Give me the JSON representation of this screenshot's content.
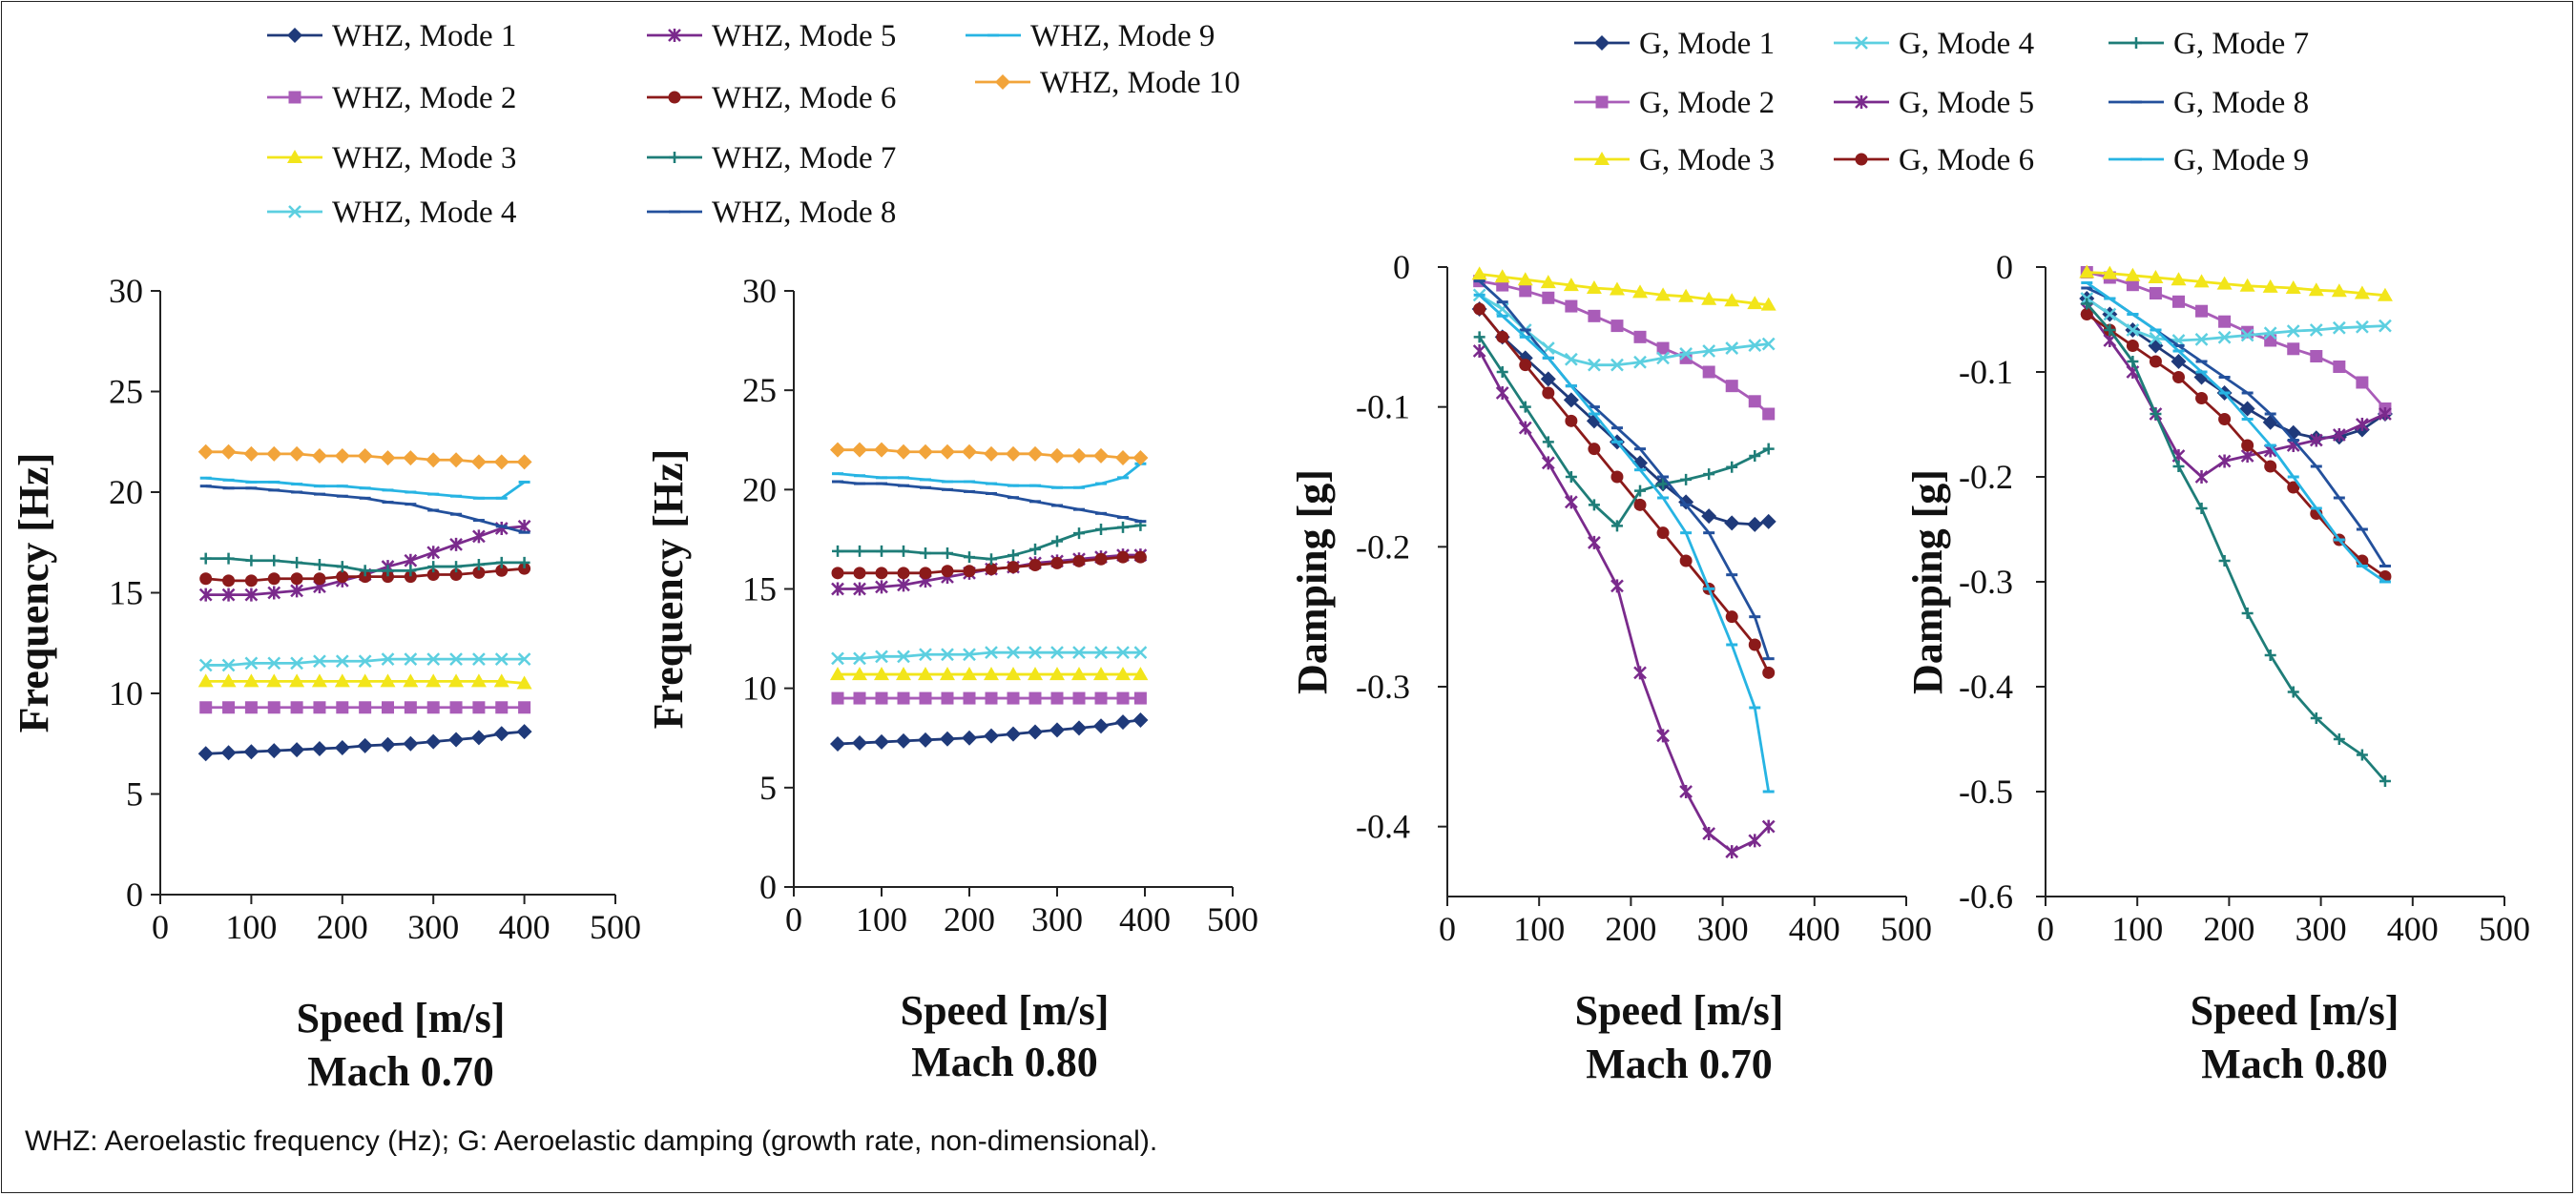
{
  "footnote": "WHZ: Aeroelastic frequency (Hz); G: Aeroelastic damping (growth rate, non-dimensional).",
  "colors": {
    "mode1": "#1f3a7a",
    "mode2": "#a95cb8",
    "mode3": "#f2e51a",
    "mode4": "#5ccfe0",
    "mode5": "#7a2a8c",
    "mode6": "#8b1a1a",
    "mode7": "#1e7d78",
    "mode8": "#23509c",
    "mode9": "#27b4e3",
    "mode10": "#f2a43a"
  },
  "legends": {
    "whz": [
      "WHZ, Mode 1",
      "WHZ, Mode 2",
      "WHZ, Mode 3",
      "WHZ, Mode 4",
      "WHZ, Mode 5",
      "WHZ, Mode 6",
      "WHZ, Mode 7",
      "WHZ, Mode 8",
      "WHZ, Mode 9",
      "WHZ, Mode 10"
    ],
    "g": [
      "G, Mode 1",
      "G, Mode 2",
      "G, Mode 3",
      "G, Mode 4",
      "G, Mode 5",
      "G, Mode 6",
      "G, Mode 7",
      "G, Mode 8",
      "G, Mode 9"
    ]
  },
  "chart_data": [
    {
      "type": "line",
      "xlabel": "Speed [m/s]",
      "subtitle": "Mach 0.70",
      "ylabel": "Frequency [Hz]",
      "xlim": [
        0,
        500
      ],
      "ylim": [
        0,
        30
      ],
      "xticks": [
        0,
        100,
        200,
        300,
        400,
        500
      ],
      "yticks": [
        0,
        5,
        10,
        15,
        20,
        25,
        30
      ],
      "x": [
        50,
        75,
        100,
        125,
        150,
        175,
        200,
        225,
        250,
        275,
        300,
        325,
        350,
        375,
        400
      ],
      "series": [
        {
          "name": "WHZ, Mode 1",
          "marker": "diamond",
          "values": [
            7.0,
            7.05,
            7.1,
            7.15,
            7.2,
            7.25,
            7.3,
            7.4,
            7.45,
            7.5,
            7.6,
            7.7,
            7.8,
            8.0,
            8.1
          ]
        },
        {
          "name": "WHZ, Mode 2",
          "marker": "square",
          "values": [
            9.3,
            9.3,
            9.3,
            9.3,
            9.3,
            9.3,
            9.3,
            9.3,
            9.3,
            9.3,
            9.3,
            9.3,
            9.3,
            9.3,
            9.3
          ]
        },
        {
          "name": "WHZ, Mode 3",
          "marker": "triangle",
          "values": [
            10.6,
            10.6,
            10.6,
            10.6,
            10.6,
            10.6,
            10.6,
            10.6,
            10.6,
            10.6,
            10.6,
            10.6,
            10.6,
            10.6,
            10.5
          ]
        },
        {
          "name": "WHZ, Mode 4",
          "marker": "x",
          "values": [
            11.4,
            11.4,
            11.5,
            11.5,
            11.5,
            11.6,
            11.6,
            11.6,
            11.7,
            11.7,
            11.7,
            11.7,
            11.7,
            11.7,
            11.7
          ]
        },
        {
          "name": "WHZ, Mode 5",
          "marker": "star",
          "values": [
            14.9,
            14.9,
            14.9,
            15.0,
            15.1,
            15.3,
            15.6,
            15.9,
            16.3,
            16.6,
            17.0,
            17.4,
            17.8,
            18.2,
            18.3
          ]
        },
        {
          "name": "WHZ, Mode 6",
          "marker": "circle",
          "values": [
            15.7,
            15.6,
            15.6,
            15.7,
            15.7,
            15.7,
            15.8,
            15.8,
            15.8,
            15.8,
            15.9,
            15.9,
            16.0,
            16.1,
            16.2
          ]
        },
        {
          "name": "WHZ, Mode 7",
          "marker": "plus",
          "values": [
            16.7,
            16.7,
            16.6,
            16.6,
            16.5,
            16.4,
            16.3,
            16.1,
            16.1,
            16.1,
            16.3,
            16.3,
            16.4,
            16.5,
            16.5
          ]
        },
        {
          "name": "WHZ, Mode 8",
          "marker": "dash",
          "values": [
            20.3,
            20.2,
            20.2,
            20.1,
            20.0,
            19.9,
            19.8,
            19.7,
            19.5,
            19.4,
            19.1,
            18.9,
            18.6,
            18.3,
            18.0
          ]
        },
        {
          "name": "WHZ, Mode 9",
          "marker": "dash",
          "values": [
            20.7,
            20.6,
            20.5,
            20.5,
            20.4,
            20.3,
            20.3,
            20.2,
            20.1,
            20.0,
            19.9,
            19.8,
            19.7,
            19.7,
            20.5
          ]
        },
        {
          "name": "WHZ, Mode 10",
          "marker": "diamond",
          "values": [
            22.0,
            22.0,
            21.9,
            21.9,
            21.9,
            21.8,
            21.8,
            21.8,
            21.7,
            21.7,
            21.6,
            21.6,
            21.5,
            21.5,
            21.5
          ]
        }
      ]
    },
    {
      "type": "line",
      "xlabel": "Speed [m/s]",
      "subtitle": "Mach 0.80",
      "ylabel": "Frequency [Hz]",
      "xlim": [
        0,
        500
      ],
      "ylim": [
        0,
        30
      ],
      "xticks": [
        0,
        100,
        200,
        300,
        400,
        500
      ],
      "yticks": [
        0,
        5,
        10,
        15,
        20,
        25,
        30
      ],
      "x": [
        50,
        75,
        100,
        125,
        150,
        175,
        200,
        225,
        250,
        275,
        300,
        325,
        350,
        375,
        395
      ],
      "series": [
        {
          "name": "WHZ, Mode 1",
          "marker": "diamond",
          "values": [
            7.2,
            7.25,
            7.3,
            7.35,
            7.4,
            7.45,
            7.5,
            7.6,
            7.7,
            7.8,
            7.9,
            8.0,
            8.1,
            8.3,
            8.4
          ]
        },
        {
          "name": "WHZ, Mode 2",
          "marker": "square",
          "values": [
            9.5,
            9.5,
            9.5,
            9.5,
            9.5,
            9.5,
            9.5,
            9.5,
            9.5,
            9.5,
            9.5,
            9.5,
            9.5,
            9.5,
            9.5
          ]
        },
        {
          "name": "WHZ, Mode 3",
          "marker": "triangle",
          "values": [
            10.7,
            10.7,
            10.7,
            10.7,
            10.7,
            10.7,
            10.7,
            10.7,
            10.7,
            10.7,
            10.7,
            10.7,
            10.7,
            10.7,
            10.7
          ]
        },
        {
          "name": "WHZ, Mode 4",
          "marker": "x",
          "values": [
            11.5,
            11.5,
            11.6,
            11.6,
            11.7,
            11.7,
            11.7,
            11.8,
            11.8,
            11.8,
            11.8,
            11.8,
            11.8,
            11.8,
            11.8
          ]
        },
        {
          "name": "WHZ, Mode 5",
          "marker": "star",
          "values": [
            15.0,
            15.0,
            15.1,
            15.2,
            15.4,
            15.6,
            15.8,
            16.0,
            16.1,
            16.3,
            16.4,
            16.5,
            16.6,
            16.7,
            16.7
          ]
        },
        {
          "name": "WHZ, Mode 6",
          "marker": "circle",
          "values": [
            15.8,
            15.8,
            15.8,
            15.8,
            15.8,
            15.9,
            15.9,
            16.0,
            16.1,
            16.2,
            16.3,
            16.4,
            16.5,
            16.6,
            16.6
          ]
        },
        {
          "name": "WHZ, Mode 7",
          "marker": "plus",
          "values": [
            16.9,
            16.9,
            16.9,
            16.9,
            16.8,
            16.8,
            16.6,
            16.5,
            16.7,
            17.0,
            17.4,
            17.8,
            18.0,
            18.1,
            18.2
          ]
        },
        {
          "name": "WHZ, Mode 8",
          "marker": "dash",
          "values": [
            20.4,
            20.3,
            20.3,
            20.2,
            20.1,
            20.0,
            19.9,
            19.8,
            19.6,
            19.4,
            19.2,
            19.0,
            18.8,
            18.6,
            18.4
          ]
        },
        {
          "name": "WHZ, Mode 9",
          "marker": "dash",
          "values": [
            20.8,
            20.7,
            20.6,
            20.6,
            20.5,
            20.4,
            20.4,
            20.3,
            20.2,
            20.2,
            20.1,
            20.1,
            20.3,
            20.6,
            21.3
          ]
        },
        {
          "name": "WHZ, Mode 10",
          "marker": "diamond",
          "values": [
            22.0,
            22.0,
            22.0,
            21.9,
            21.9,
            21.9,
            21.9,
            21.8,
            21.8,
            21.8,
            21.7,
            21.7,
            21.7,
            21.6,
            21.6
          ]
        }
      ]
    },
    {
      "type": "line",
      "xlabel": "Speed [m/s]",
      "subtitle": "Mach 0.70",
      "ylabel": "Damping [g]",
      "xlim": [
        0,
        500
      ],
      "ylim": [
        -0.45,
        0
      ],
      "xticks": [
        0,
        100,
        200,
        300,
        400,
        500
      ],
      "yticks": [
        -0.4,
        -0.3,
        -0.2,
        -0.1,
        0
      ],
      "x": [
        35,
        60,
        85,
        110,
        135,
        160,
        185,
        210,
        235,
        260,
        285,
        310,
        335,
        350
      ],
      "series": [
        {
          "name": "G, Mode 1",
          "marker": "diamond",
          "values": [
            -0.03,
            -0.05,
            -0.065,
            -0.08,
            -0.095,
            -0.11,
            -0.125,
            -0.14,
            -0.155,
            -0.168,
            -0.178,
            -0.183,
            -0.184,
            -0.182
          ]
        },
        {
          "name": "G, Mode 2",
          "marker": "square",
          "values": [
            -0.01,
            -0.013,
            -0.017,
            -0.022,
            -0.028,
            -0.035,
            -0.042,
            -0.05,
            -0.058,
            -0.065,
            -0.075,
            -0.085,
            -0.096,
            -0.105
          ]
        },
        {
          "name": "G, Mode 3",
          "marker": "triangle",
          "values": [
            -0.005,
            -0.007,
            -0.009,
            -0.011,
            -0.013,
            -0.015,
            -0.016,
            -0.018,
            -0.02,
            -0.021,
            -0.023,
            -0.024,
            -0.026,
            -0.027
          ]
        },
        {
          "name": "G, Mode 4",
          "marker": "x",
          "values": [
            -0.02,
            -0.03,
            -0.045,
            -0.058,
            -0.066,
            -0.07,
            -0.07,
            -0.068,
            -0.065,
            -0.062,
            -0.06,
            -0.058,
            -0.056,
            -0.055
          ]
        },
        {
          "name": "G, Mode 5",
          "marker": "star",
          "values": [
            -0.06,
            -0.09,
            -0.115,
            -0.14,
            -0.168,
            -0.197,
            -0.228,
            -0.29,
            -0.335,
            -0.375,
            -0.405,
            -0.418,
            -0.41,
            -0.4
          ]
        },
        {
          "name": "G, Mode 6",
          "marker": "circle",
          "values": [
            -0.03,
            -0.05,
            -0.07,
            -0.09,
            -0.11,
            -0.13,
            -0.15,
            -0.17,
            -0.19,
            -0.21,
            -0.23,
            -0.25,
            -0.27,
            -0.29
          ]
        },
        {
          "name": "G, Mode 7",
          "marker": "plus",
          "values": [
            -0.05,
            -0.075,
            -0.1,
            -0.125,
            -0.15,
            -0.17,
            -0.185,
            -0.16,
            -0.155,
            -0.152,
            -0.148,
            -0.143,
            -0.135,
            -0.13
          ]
        },
        {
          "name": "G, Mode 8",
          "marker": "dash",
          "values": [
            -0.01,
            -0.025,
            -0.045,
            -0.065,
            -0.085,
            -0.1,
            -0.115,
            -0.13,
            -0.15,
            -0.17,
            -0.19,
            -0.22,
            -0.25,
            -0.28
          ]
        },
        {
          "name": "G, Mode 9",
          "marker": "dash",
          "values": [
            -0.02,
            -0.035,
            -0.05,
            -0.065,
            -0.085,
            -0.105,
            -0.125,
            -0.145,
            -0.165,
            -0.19,
            -0.23,
            -0.27,
            -0.315,
            -0.375
          ]
        }
      ]
    },
    {
      "type": "line",
      "xlabel": "Speed [m/s]",
      "subtitle": "Mach 0.80",
      "ylabel": "Damping [g]",
      "xlim": [
        0,
        500
      ],
      "ylim": [
        -0.6,
        0
      ],
      "xticks": [
        0,
        100,
        200,
        300,
        400,
        500
      ],
      "yticks": [
        -0.6,
        -0.5,
        -0.4,
        -0.3,
        -0.2,
        -0.1,
        0
      ],
      "x": [
        45,
        70,
        95,
        120,
        145,
        170,
        195,
        220,
        245,
        270,
        295,
        320,
        345,
        370
      ],
      "series": [
        {
          "name": "G, Mode 1",
          "marker": "diamond",
          "values": [
            -0.03,
            -0.045,
            -0.06,
            -0.075,
            -0.09,
            -0.105,
            -0.12,
            -0.135,
            -0.148,
            -0.158,
            -0.163,
            -0.162,
            -0.155,
            -0.14
          ]
        },
        {
          "name": "G, Mode 2",
          "marker": "square",
          "values": [
            -0.005,
            -0.01,
            -0.017,
            -0.025,
            -0.033,
            -0.042,
            -0.052,
            -0.062,
            -0.07,
            -0.078,
            -0.085,
            -0.095,
            -0.11,
            -0.135
          ]
        },
        {
          "name": "G, Mode 3",
          "marker": "triangle",
          "values": [
            -0.005,
            -0.006,
            -0.008,
            -0.01,
            -0.012,
            -0.014,
            -0.016,
            -0.018,
            -0.019,
            -0.02,
            -0.022,
            -0.023,
            -0.025,
            -0.027
          ]
        },
        {
          "name": "G, Mode 4",
          "marker": "x",
          "values": [
            -0.03,
            -0.045,
            -0.06,
            -0.068,
            -0.07,
            -0.069,
            -0.067,
            -0.065,
            -0.063,
            -0.061,
            -0.06,
            -0.058,
            -0.057,
            -0.056
          ]
        },
        {
          "name": "G, Mode 5",
          "marker": "star",
          "values": [
            -0.04,
            -0.07,
            -0.1,
            -0.14,
            -0.18,
            -0.2,
            -0.185,
            -0.18,
            -0.175,
            -0.17,
            -0.165,
            -0.16,
            -0.15,
            -0.14
          ]
        },
        {
          "name": "G, Mode 6",
          "marker": "circle",
          "values": [
            -0.045,
            -0.06,
            -0.075,
            -0.09,
            -0.105,
            -0.125,
            -0.145,
            -0.17,
            -0.19,
            -0.21,
            -0.235,
            -0.26,
            -0.28,
            -0.295
          ]
        },
        {
          "name": "G, Mode 7",
          "marker": "plus",
          "values": [
            -0.035,
            -0.06,
            -0.09,
            -0.14,
            -0.19,
            -0.23,
            -0.28,
            -0.33,
            -0.37,
            -0.405,
            -0.43,
            -0.45,
            -0.465,
            -0.49
          ]
        },
        {
          "name": "G, Mode 8",
          "marker": "dash",
          "values": [
            -0.02,
            -0.03,
            -0.045,
            -0.06,
            -0.075,
            -0.09,
            -0.105,
            -0.12,
            -0.14,
            -0.165,
            -0.19,
            -0.22,
            -0.25,
            -0.285
          ]
        },
        {
          "name": "G, Mode 9",
          "marker": "dash",
          "values": [
            -0.015,
            -0.03,
            -0.045,
            -0.06,
            -0.08,
            -0.1,
            -0.12,
            -0.145,
            -0.17,
            -0.2,
            -0.23,
            -0.26,
            -0.285,
            -0.3
          ]
        }
      ]
    }
  ]
}
